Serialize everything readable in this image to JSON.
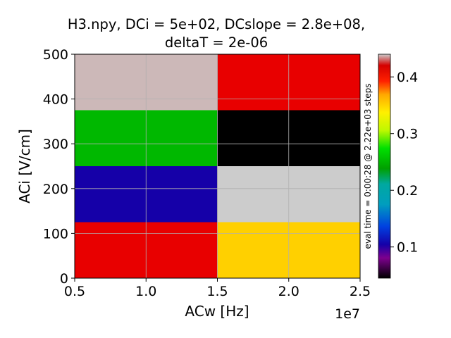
{
  "chart_data": {
    "type": "heatmap",
    "title_line1": "H3.npy, DCi = 5e+02,  DCslope = 2.8e+08,",
    "title_line2": "deltaT = 2e-06",
    "xlabel": "ACw [Hz]",
    "ylabel": "ACi [V/cm]",
    "x_offset_label": "1e7",
    "x_edges": [
      0.5,
      1.5,
      2.5
    ],
    "y_edges": [
      0,
      125,
      250,
      375,
      500
    ],
    "xlim": [
      0.5,
      2.5
    ],
    "ylim": [
      0,
      500
    ],
    "x_ticks": [
      0.5,
      1.0,
      1.5,
      2.0,
      2.5
    ],
    "x_tick_labels": [
      "0.5",
      "1.0",
      "1.5",
      "2.0",
      "2.5"
    ],
    "y_ticks": [
      0,
      100,
      200,
      300,
      400,
      500
    ],
    "y_tick_labels": [
      "0",
      "100",
      "200",
      "300",
      "400",
      "500"
    ],
    "grid": true,
    "values": [
      [
        0.375,
        0.305
      ],
      [
        0.085,
        0.435
      ],
      [
        0.225,
        0.045
      ],
      [
        0.43,
        0.375
      ]
    ],
    "cells_color_hint": [
      [
        "#e80000",
        "#ffd000"
      ],
      [
        "#1500a8",
        "#cccccc"
      ],
      [
        "#00b800",
        "#000000"
      ],
      [
        "#ccb8b8",
        "#e80000"
      ]
    ],
    "colorbar": {
      "range": [
        0.045,
        0.44
      ],
      "ticks": [
        0.1,
        0.2,
        0.3,
        0.4
      ],
      "tick_labels": [
        "0.1",
        "0.2",
        "0.3",
        "0.4"
      ],
      "colormap": "nipy_spectral",
      "label": "eval time = 0:00:28 @ 2.22e+03 steps"
    }
  }
}
